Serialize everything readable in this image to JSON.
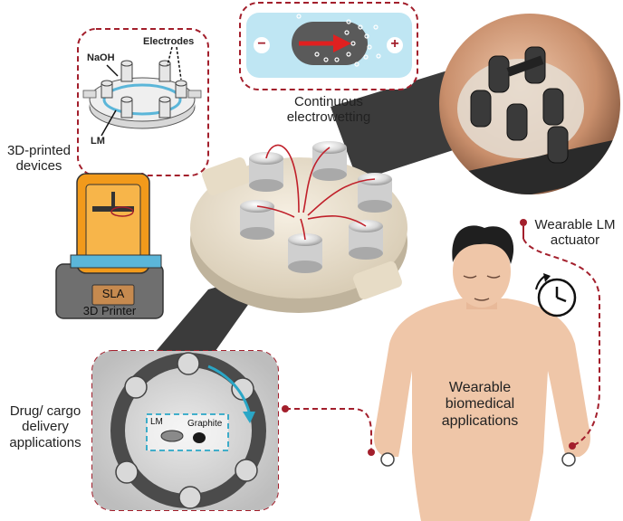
{
  "inset_top_left": {
    "naoh_label": "NaOH",
    "electrodes_label": "Electrodes",
    "lm_label": "LM"
  },
  "labels": {
    "printed_devices_line1": "3D-printed",
    "printed_devices_line2": "devices",
    "printer_badge": "SLA",
    "printer_caption": "3D Printer",
    "electrowetting_line1": "Continuous",
    "electrowetting_line2": "electrowetting",
    "minus_sign": "−",
    "plus_sign": "+",
    "wearable_actuator_line1": "Wearable LM",
    "wearable_actuator_line2": "actuator",
    "drug_line1": "Drug/ cargo",
    "drug_line2": "delivery",
    "drug_line3": "applications",
    "biomed_line1": "Wearable",
    "biomed_line2": "biomedical",
    "biomed_line3": "applications",
    "micro_lm_label": "LM",
    "micro_graphite_label": "Graphite"
  },
  "colors": {
    "dashed_frame": "#a31f2c",
    "printer_orange": "#f29a1b",
    "printer_gray": "#6f6f6f",
    "resin_blue": "#5bb6d9",
    "strap": "#3b3b3b",
    "device_base": "#ece2cf",
    "skin": "#efc6a8",
    "electrowetting_bg": "#bfe6f3",
    "arrow_red": "#e02020",
    "micro_cyan": "#2aa6c6"
  }
}
